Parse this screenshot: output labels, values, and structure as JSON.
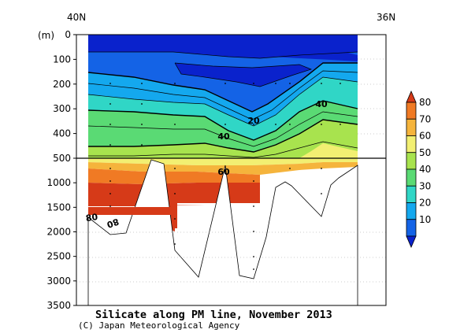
{
  "chart_data": {
    "type": "heatmap",
    "title": "Silicate along PM line, November 2013",
    "credit": "(C) Japan Meteorological Agency",
    "x_labels": {
      "left": "40N",
      "right": "36N"
    },
    "y_unit": "(m)",
    "y_ticks_upper": [
      0,
      100,
      200,
      300,
      400,
      500
    ],
    "y_ticks_lower": [
      1000,
      1500,
      2000,
      2500,
      3000,
      3500
    ],
    "ylim_upper": [
      0,
      500
    ],
    "ylim_lower": [
      500,
      3500
    ],
    "colorbar": {
      "levels": [
        10,
        20,
        30,
        40,
        50,
        60,
        70,
        80
      ],
      "labels": [
        "10",
        "20",
        "30",
        "40",
        "50",
        "60",
        "70",
        "80"
      ],
      "colors": [
        "#0a22cc",
        "#1463e6",
        "#14a8ee",
        "#30d6c6",
        "#5ada74",
        "#a8e34e",
        "#f2ef72",
        "#f5b43c",
        "#f07a24",
        "#d63a18"
      ]
    },
    "contour_labels": [
      "20",
      "40",
      "40",
      "60",
      "80",
      "80"
    ]
  }
}
